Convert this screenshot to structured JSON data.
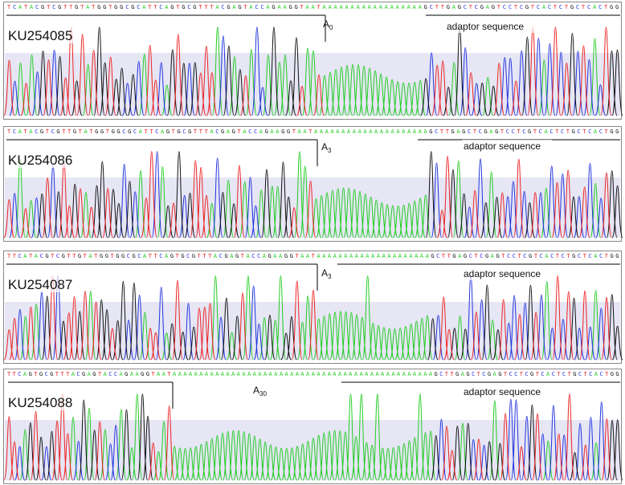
{
  "panels": [
    {
      "id": "KU254085",
      "sequence": "TCATACGTCGTTGTATGGTGGCGCATTCAGTGCGTTTACGAGTACCAGAAGGTAATAAAAAAAAAAAAAAAAAAGCTTGAGCTCGAGTCCTCGTCACTCTGCTCACTGG",
      "label_base": "A",
      "label_sub": "0",
      "adaptor": "adaptor sequence"
    },
    {
      "id": "KU254086",
      "sequence": "TCATACGTCGTTGTATGGTGGCGCATTCAGTGCGTTTACGAGTACCAGAAGGTAATAAAAAAAAAAAAAAAAAAAAAGCTTGAGCTCGAGTCCTCGTCACTCTGCTCACTGG",
      "label_base": "A",
      "label_sub": "3",
      "adaptor": "adaptor sequence"
    },
    {
      "id": "KU254087",
      "sequence": "TTCATACGTCGTTGTATGGTGGCGCATTCAGTGCGTTTACGAGTACCAGAAGGTAATAAAAAAAAAAAAAAAAAAAAAGCTTGAGCTCGAGTCCTCGTCACTCTGCTCACTGG",
      "label_base": "A",
      "label_sub": "3",
      "adaptor": "adaptor sequence"
    },
    {
      "id": "KU254088",
      "sequence": "TTCAGTGCGTTTACGAGTACCAGAAGGTAATAAAAAAAAAAAAAAAAAAAAAAAAAAAAAAAAAAAAAAAAAAAAAAAAAGCTTGAGCTCGAGTCCTCGTCACTCTGCTCACTGG",
      "label_base": "A",
      "label_sub": "30",
      "adaptor": "adaptor sequence"
    }
  ]
}
